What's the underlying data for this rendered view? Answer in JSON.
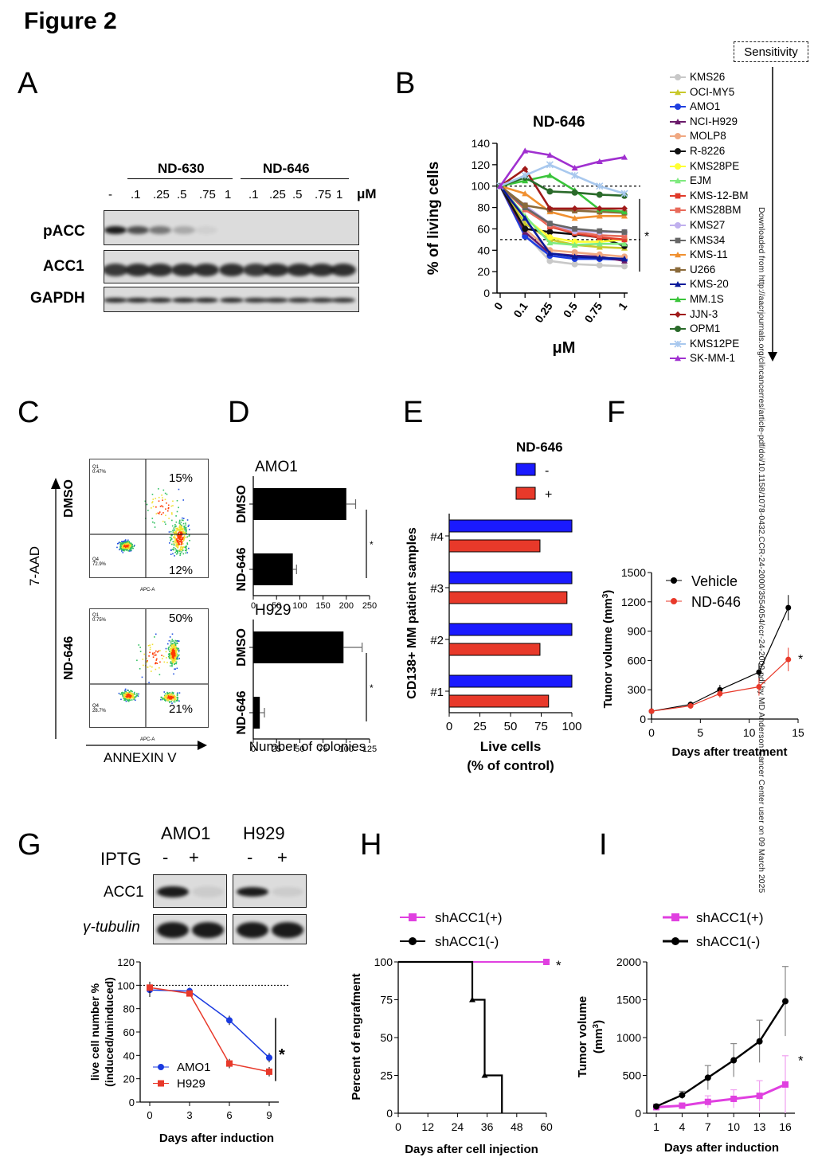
{
  "figure_title": "Figure 2",
  "panel_labels": [
    "A",
    "B",
    "C",
    "D",
    "E",
    "F",
    "G",
    "H",
    "I"
  ],
  "panelA": {
    "drug1": "ND-630",
    "drug2": "ND-646",
    "unit": "μM",
    "doses": [
      "-",
      ".1",
      ".25",
      ".5",
      ".75",
      "1",
      ".1",
      ".25",
      ".5",
      ".75",
      "1"
    ],
    "rows": [
      "pACC",
      "ACC1",
      "GAPDH"
    ]
  },
  "panelB": {
    "title": "ND-646",
    "ylabel": "% of living cells",
    "xlabel": "μM",
    "xticks": [
      "0",
      "0.1",
      "0.25",
      "0.5",
      "0.75",
      "1"
    ],
    "yticks": [
      "0",
      "20",
      "40",
      "60",
      "80",
      "100",
      "120",
      "140"
    ],
    "sig": "*",
    "sensitivity": "Sensitivity",
    "legend": [
      "KMS26",
      "OCI-MY5",
      "AMO1",
      "NCI-H929",
      "MOLP8",
      "R-8226",
      "KMS28PE",
      "EJM",
      "KMS-12-BM",
      "KMS28BM",
      "KMS27",
      "KMS34",
      "KMS-11",
      "U266",
      "KMS-20",
      "MM.1S",
      "JJN-3",
      "OPM1",
      "KMS12PE",
      "SK-MM-1"
    ],
    "colors": [
      "#c8c8c8",
      "#c8c82a",
      "#1f3fe0",
      "#6a1a6a",
      "#f0a882",
      "#111111",
      "#ffff33",
      "#7fea7f",
      "#e03a2a",
      "#e86a5a",
      "#c0b0ee",
      "#666666",
      "#f09030",
      "#8a6a3a",
      "#0a1a9a",
      "#3ac43a",
      "#a01a1a",
      "#2a6a2a",
      "#a8c8ee",
      "#a030d0"
    ],
    "markers": [
      "circle",
      "tri",
      "circle",
      "tri",
      "circle",
      "circle",
      "circle",
      "tri",
      "square",
      "square",
      "circle",
      "square",
      "tri",
      "square",
      "tri",
      "tri",
      "diamond",
      "circle",
      "cross",
      "tri"
    ]
  },
  "chart_data": [
    {
      "type": "line",
      "panel": "B",
      "title": "ND-646",
      "xlabel": "μM",
      "ylabel": "% of living cells",
      "categories": [
        "0",
        "0.1",
        "0.25",
        "0.5",
        "0.75",
        "1"
      ],
      "ylim": [
        0,
        140
      ],
      "series": [
        {
          "name": "KMS26",
          "values": [
            100,
            55,
            30,
            27,
            26,
            25
          ]
        },
        {
          "name": "OCI-MY5",
          "values": [
            100,
            65,
            50,
            45,
            43,
            42
          ]
        },
        {
          "name": "AMO1",
          "values": [
            100,
            53,
            35,
            32,
            32,
            31
          ]
        },
        {
          "name": "NCI-H929",
          "values": [
            100,
            57,
            37,
            35,
            34,
            30
          ]
        },
        {
          "name": "MOLP8",
          "values": [
            100,
            60,
            40,
            38,
            36,
            34
          ]
        },
        {
          "name": "R-8226",
          "values": [
            100,
            60,
            57,
            55,
            52,
            44
          ]
        },
        {
          "name": "KMS28PE",
          "values": [
            100,
            70,
            52,
            48,
            48,
            50
          ]
        },
        {
          "name": "EJM",
          "values": [
            100,
            72,
            47,
            45,
            46,
            46
          ]
        },
        {
          "name": "KMS-12-BM",
          "values": [
            100,
            80,
            62,
            56,
            52,
            50
          ]
        },
        {
          "name": "KMS28BM",
          "values": [
            100,
            78,
            63,
            57,
            54,
            53
          ]
        },
        {
          "name": "KMS27",
          "values": [
            100,
            82,
            65,
            58,
            57,
            57
          ]
        },
        {
          "name": "KMS34",
          "values": [
            100,
            80,
            65,
            60,
            58,
            57
          ]
        },
        {
          "name": "KMS-11",
          "values": [
            100,
            93,
            76,
            70,
            72,
            72
          ]
        },
        {
          "name": "U266",
          "values": [
            100,
            82,
            78,
            77,
            76,
            75
          ]
        },
        {
          "name": "KMS-20",
          "values": [
            100,
            70,
            37,
            34,
            33,
            32
          ]
        },
        {
          "name": "MM.1S",
          "values": [
            100,
            105,
            110,
            96,
            78,
            76
          ]
        },
        {
          "name": "JJN-3",
          "values": [
            100,
            116,
            79,
            79,
            79,
            79
          ]
        },
        {
          "name": "OPM1",
          "values": [
            100,
            108,
            95,
            94,
            92,
            91
          ]
        },
        {
          "name": "KMS12PE",
          "values": [
            100,
            110,
            120,
            110,
            100,
            93
          ]
        },
        {
          "name": "SK-MM-1",
          "values": [
            100,
            133,
            129,
            117,
            123,
            127
          ]
        }
      ],
      "reference_lines": [
        100,
        50
      ]
    },
    {
      "type": "bar",
      "panel": "D",
      "subtitle": "AMO1",
      "categories": [
        "DMSO",
        "ND-646"
      ],
      "values": [
        200,
        85
      ],
      "errors": [
        20,
        8
      ],
      "xlim": [
        0,
        250
      ],
      "xlabel": "Number of colonies"
    },
    {
      "type": "bar",
      "panel": "D",
      "subtitle": "H929",
      "categories": [
        "DMSO",
        "ND-646"
      ],
      "values": [
        97,
        7
      ],
      "errors": [
        20,
        5
      ],
      "xlim": [
        0,
        125
      ],
      "xlabel": "Number of colonies"
    },
    {
      "type": "bar",
      "panel": "E",
      "title": "ND-646",
      "categories": [
        "#4",
        "#3",
        "#2",
        "#1"
      ],
      "series": [
        {
          "name": "-",
          "values": [
            100,
            100,
            100,
            100
          ]
        },
        {
          "name": "+",
          "values": [
            74,
            96,
            74,
            81
          ]
        }
      ],
      "xlim": [
        0,
        100
      ],
      "xlabel": "Live cells (% of control)",
      "ylabel": "CD138+ MM patient samples"
    },
    {
      "type": "line",
      "panel": "F",
      "x": [
        0,
        4,
        7,
        11,
        14
      ],
      "series": [
        {
          "name": "Vehicle",
          "values": [
            80,
            150,
            300,
            480,
            1140
          ]
        },
        {
          "name": "ND-646",
          "values": [
            80,
            135,
            260,
            330,
            610
          ]
        }
      ],
      "xlim": [
        0,
        15
      ],
      "ylim": [
        0,
        1500
      ],
      "xlabel": "Days after treatment",
      "ylabel": "Tumor volume (mm3)"
    },
    {
      "type": "line",
      "panel": "G",
      "x": [
        0,
        3,
        6,
        9
      ],
      "series": [
        {
          "name": "AMO1",
          "values": [
            96,
            95,
            70,
            38
          ]
        },
        {
          "name": "H929",
          "values": [
            98,
            93,
            33,
            26
          ]
        }
      ],
      "ylim": [
        0,
        120
      ],
      "xlabel": "Days after induction",
      "ylabel": "live cell number % (induced/uninduced)"
    },
    {
      "type": "line",
      "panel": "H",
      "series": [
        {
          "name": "shACC1(+)",
          "x": [
            0,
            60
          ],
          "values": [
            100,
            100
          ]
        },
        {
          "name": "shACC1(-)",
          "x": [
            0,
            30,
            35,
            42
          ],
          "values": [
            100,
            75,
            25,
            0
          ]
        }
      ],
      "xlim": [
        0,
        60
      ],
      "ylim": [
        0,
        100
      ],
      "xlabel": "Days after cell injection",
      "ylabel": "Percent of engrafment"
    },
    {
      "type": "line",
      "panel": "I",
      "x": [
        1,
        4,
        7,
        10,
        13,
        16
      ],
      "series": [
        {
          "name": "shACC1(+)",
          "values": [
            80,
            100,
            150,
            190,
            230,
            380
          ]
        },
        {
          "name": "shACC1(-)",
          "values": [
            90,
            240,
            470,
            700,
            950,
            1480
          ]
        }
      ],
      "ylim": [
        0,
        2000
      ],
      "xlabel": "Days after induction",
      "ylabel": "Tumor volume (mm3)"
    }
  ],
  "panelC": {
    "ylabel": "7-AAD",
    "xlabel": "ANNEXIN V",
    "rows": [
      {
        "name": "DMSO",
        "ur": "15%",
        "lr": "12%",
        "q1": "Q1 0.47%",
        "q4": "Q4 72.9%"
      },
      {
        "name": "ND-646",
        "ur": "50%",
        "lr": "21%",
        "q1": "Q1 0.75%",
        "q4": "Q4 28.7%"
      }
    ],
    "axis_small": "APC-A"
  },
  "panelD": {
    "sub1": "AMO1",
    "sub2": "H929",
    "cat1": "DMSO",
    "cat2": "ND-646",
    "ticks1": [
      "0",
      "50",
      "100",
      "150",
      "200",
      "250"
    ],
    "ticks2": [
      "0",
      "25",
      "50",
      "75",
      "100",
      "125"
    ],
    "xlabel": "Number of colonies",
    "sig": "*"
  },
  "panelE": {
    "title": "ND-646",
    "leg_minus": "-",
    "leg_plus": "+",
    "samples": [
      "#4",
      "#3",
      "#2",
      "#1"
    ],
    "ticks": [
      "0",
      "25",
      "50",
      "75",
      "100"
    ],
    "xlabel1": "Live cells",
    "xlabel2": "(% of control)",
    "ylabel": "CD138+ MM patient samples",
    "blue": "#1a1aff",
    "red": "#e8392a"
  },
  "panelF": {
    "leg1": "Vehicle",
    "leg2": "ND-646",
    "yticks": [
      "0",
      "300",
      "600",
      "900",
      "1200",
      "1500"
    ],
    "xticks": [
      "0",
      "5",
      "10",
      "15"
    ],
    "xlabel": "Days after treatment",
    "ylabel": "Tumor volume (mm",
    "ylabel_sup": "3",
    "ylabel_end": ")",
    "sig": "*"
  },
  "panelG": {
    "cell1": "AMO1",
    "cell2": "H929",
    "iptg": "IPTG",
    "minus": "-",
    "plus": "+",
    "row1": "ACC1",
    "row2": "γ-tubulin",
    "yticks": [
      "0",
      "20",
      "40",
      "60",
      "80",
      "100",
      "120"
    ],
    "xticks": [
      "0",
      "3",
      "6",
      "9"
    ],
    "ylabel1": "live cell number %",
    "ylabel2": "(induced/uninduced)",
    "xlabel": "Days after induction",
    "leg1": "AMO1",
    "leg2": "H929",
    "sig": "*"
  },
  "panelH": {
    "leg1": "shACC1(+)",
    "leg2": "shACC1(-)",
    "yticks": [
      "0",
      "25",
      "50",
      "75",
      "100"
    ],
    "xticks": [
      "0",
      "12",
      "24",
      "36",
      "48",
      "60"
    ],
    "xlabel": "Days after cell injection",
    "ylabel": "Percent of engrafment",
    "sig": "*"
  },
  "panelI": {
    "leg1": "shACC1(+)",
    "leg2": "shACC1(-)",
    "yticks": [
      "0",
      "500",
      "1000",
      "1500",
      "2000"
    ],
    "xticks": [
      "1",
      "4",
      "7",
      "10",
      "13",
      "16"
    ],
    "xlabel": "Days after induction",
    "ylabel1": "Tumor volume",
    "ylabel2": "(mm",
    "ylabel2_sup": "3",
    "ylabel2_end": ")",
    "sig": "*"
  },
  "watermark": "Downloaded from http://aacrjournals.org/clincancerres/article-pdf/doi/10.1158/1078-0432.CCR-24-2000/3554054/ccr-24-2000.pdf by MD Anderson Cancer Center user on 09 March 2025"
}
